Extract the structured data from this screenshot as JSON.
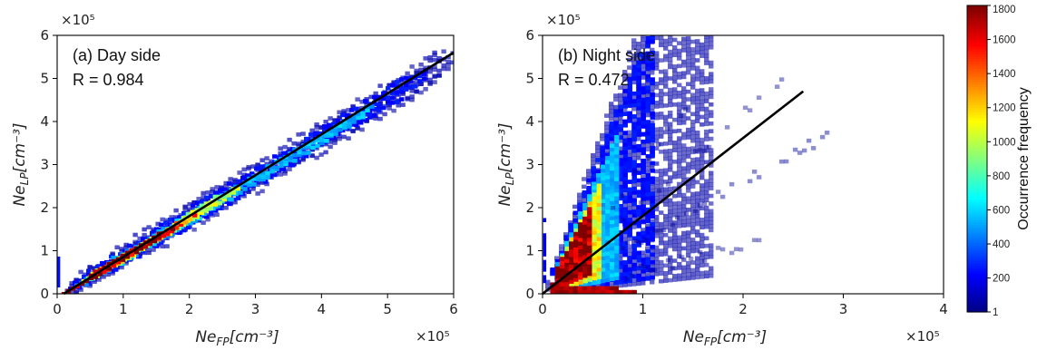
{
  "chart_data": [
    {
      "type": "heatmap",
      "panel_label": "(a)",
      "title": "Day side",
      "stat": "R = 0.984",
      "xlabel_base": "Ne",
      "xlabel_sub": "FP",
      "xlabel_unit": "[cm⁻³]",
      "ylabel_base": "Ne",
      "ylabel_sub": "LP",
      "ylabel_unit": "[cm⁻³]",
      "x_multiplier": "×10⁵",
      "y_multiplier": "×10⁵",
      "xlim": [
        0,
        6
      ],
      "ylim": [
        0,
        6
      ],
      "x_ticks": [
        "0",
        "1",
        "2",
        "3",
        "4",
        "5",
        "6"
      ],
      "y_ticks": [
        "0",
        "1",
        "2",
        "3",
        "4",
        "5",
        "6"
      ],
      "fit_line": {
        "x": [
          0.1,
          6.0
        ],
        "y": [
          0.0,
          5.6
        ]
      },
      "density": {
        "bands": [
          {
            "x0": 0.15,
            "x1": 6.0,
            "slope": 0.93,
            "offset": -0.05,
            "width": 0.35,
            "level": 80,
            "jitter": 0.1
          },
          {
            "x0": 0.2,
            "x1": 5.6,
            "slope": 0.93,
            "offset": -0.05,
            "width": 0.22,
            "level": 250,
            "jitter": 0.06
          },
          {
            "x0": 0.3,
            "x1": 4.8,
            "slope": 0.93,
            "offset": -0.08,
            "width": 0.13,
            "level": 550,
            "jitter": 0.05
          },
          {
            "x0": 0.4,
            "x1": 2.8,
            "slope": 0.93,
            "offset": -0.08,
            "width": 0.1,
            "level": 1000,
            "jitter": 0.04
          },
          {
            "x0": 0.5,
            "x1": 2.1,
            "slope": 0.93,
            "offset": -0.08,
            "width": 0.08,
            "level": 1400,
            "jitter": 0.03
          },
          {
            "x0": 0.1,
            "x1": 1.8,
            "slope": 0.93,
            "offset": -0.08,
            "width": 0.07,
            "level": 1800,
            "jitter": 0.02
          }
        ],
        "edge_column": {
          "x": 0.02,
          "y0": 0.2,
          "y1": 0.9,
          "level": 250
        }
      }
    },
    {
      "type": "heatmap",
      "panel_label": "(b)",
      "title": "Night side",
      "stat": "R = 0.472",
      "xlabel_base": "Ne",
      "xlabel_sub": "FP",
      "xlabel_unit": "[cm⁻³]",
      "ylabel_base": "Ne",
      "ylabel_sub": "LP",
      "ylabel_unit": "[cm⁻³]",
      "x_multiplier": "×10⁵",
      "y_multiplier": "×10⁵",
      "xlim": [
        0,
        4
      ],
      "ylim": [
        0,
        6
      ],
      "x_ticks": [
        "0",
        "1",
        "2",
        "3",
        "4"
      ],
      "y_ticks": [
        "0",
        "1",
        "2",
        "3",
        "4",
        "5",
        "6"
      ],
      "fit_line": {
        "x": [
          0.0,
          2.6
        ],
        "y": [
          0.0,
          4.7
        ]
      },
      "density": {
        "wedges": [
          {
            "x0": 0.05,
            "x1": 1.7,
            "slope_lo": 0.25,
            "slope_hi": 6.5,
            "level": 70
          },
          {
            "x0": 0.1,
            "x1": 1.1,
            "slope_lo": 0.35,
            "slope_hi": 5.8,
            "level": 250
          },
          {
            "x0": 0.15,
            "x1": 0.75,
            "slope_lo": 0.5,
            "slope_hi": 5.0,
            "level": 550
          },
          {
            "x0": 0.2,
            "x1": 0.6,
            "slope_lo": 0.7,
            "slope_hi": 4.6,
            "level": 1100
          },
          {
            "x0": 0.15,
            "x1": 0.5,
            "slope_lo": 1.0,
            "slope_hi": 4.3,
            "level": 1800
          }
        ],
        "base_strip": {
          "x0": 0.1,
          "x1": 0.95,
          "y0": 0.0,
          "y1": 0.25,
          "level": 1800
        },
        "streaks": [
          {
            "x0": 0.8,
            "x1": 2.9,
            "slope": 1.3,
            "level": 40
          },
          {
            "x0": 0.8,
            "x1": 2.4,
            "slope": 2.1,
            "level": 35
          },
          {
            "x0": 0.7,
            "x1": 1.5,
            "slope": 3.0,
            "level": 40
          },
          {
            "x0": 0.8,
            "x1": 2.2,
            "slope": 0.55,
            "level": 35
          }
        ],
        "edge_column": {
          "x": 0.02,
          "y0": 0.3,
          "y1": 1.8,
          "level": 200
        }
      }
    }
  ],
  "colorbar": {
    "label": "Occurrence frequency",
    "range": [
      1,
      1800
    ],
    "ticks": [
      "1800",
      "1600",
      "1400",
      "1200",
      "1000",
      "800",
      "600",
      "400",
      "200",
      "1"
    ],
    "tick_values": [
      1800,
      1600,
      1400,
      1200,
      1000,
      800,
      600,
      400,
      200,
      1
    ],
    "colormap": "jet"
  }
}
